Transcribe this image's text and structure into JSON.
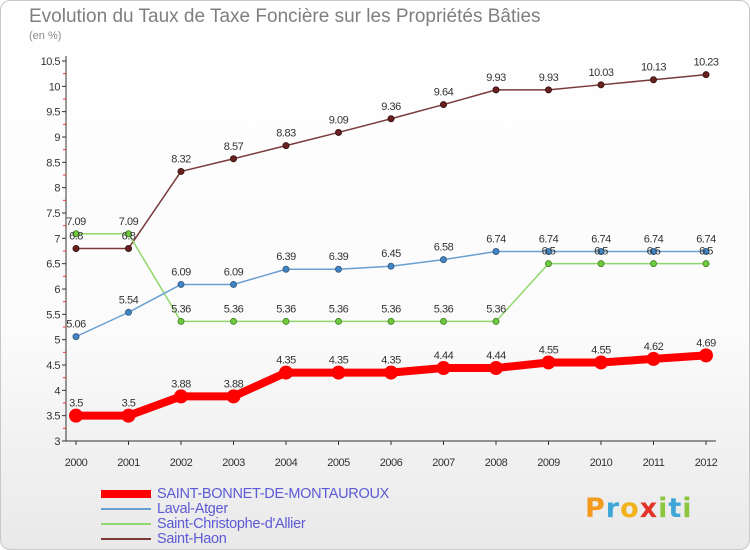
{
  "title": "Evolution du Taux de Taxe Foncière sur les Propriétés Bâties",
  "subtitle": "(en %)",
  "brand": {
    "letters": [
      "P",
      "r",
      "o",
      "x",
      "i",
      "t",
      "i"
    ],
    "colors": [
      "#f29a1e",
      "#3fa6d8",
      "#f2b21e",
      "#e6332a",
      "#8cc63f",
      "#3fa6d8",
      "#8cc63f"
    ]
  },
  "chart_data": {
    "type": "line",
    "x": [
      "2000",
      "2001",
      "2002",
      "2003",
      "2004",
      "2005",
      "2006",
      "2007",
      "2008",
      "2009",
      "2010",
      "2011",
      "2012"
    ],
    "ylim": [
      3,
      10.5
    ],
    "yticks": [
      "3",
      "3.5",
      "4",
      "4.5",
      "5",
      "5.5",
      "6",
      "6.5",
      "7",
      "7.5",
      "8",
      "8.5",
      "9",
      "9.5",
      "10",
      "10.5"
    ],
    "grid": false,
    "legend": "bottom-left",
    "series": [
      {
        "name": "SAINT-BONNET-DE-MONTAUROUX",
        "color": "#ff0000",
        "values": [
          3.5,
          3.5,
          3.88,
          3.88,
          4.35,
          4.35,
          4.35,
          4.44,
          4.44,
          4.55,
          4.55,
          4.62,
          4.69
        ]
      },
      {
        "name": "Laval-Atger",
        "color": "#6a9fd2",
        "values": [
          5.06,
          5.54,
          6.09,
          6.09,
          6.39,
          6.39,
          6.45,
          6.58,
          6.74,
          6.74,
          6.74,
          6.74,
          6.74
        ]
      },
      {
        "name": "Saint-Christophe-d'Allier",
        "color": "#90d86b",
        "values": [
          7.09,
          7.09,
          5.36,
          5.36,
          5.36,
          5.36,
          5.36,
          5.36,
          5.36,
          6.5,
          6.5,
          6.5,
          6.5
        ]
      },
      {
        "name": "Saint-Haon",
        "color": "#7a3a3a",
        "values": [
          6.8,
          6.8,
          8.32,
          8.57,
          8.83,
          9.09,
          9.36,
          9.64,
          9.93,
          9.93,
          10.03,
          10.13,
          10.23
        ]
      }
    ],
    "data_labels": [
      [
        "3.5",
        "3.5",
        "3.88",
        "3.88",
        "4.35",
        "4.35",
        "4.35",
        "4.44",
        "4.44",
        "4.55",
        "4.55",
        "4.62",
        "4.69"
      ],
      [
        "5.06",
        "5.54",
        "6.09",
        "6.09",
        "6.39",
        "6.39",
        "6.45",
        "6.58",
        "6.74",
        "6.74",
        "6.74",
        "6.74",
        "6.74"
      ],
      [
        "7.09",
        "7.09",
        "5.36",
        "5.36",
        "5.36",
        "5.36",
        "5.36",
        "5.36",
        "5.36",
        "6.5",
        "6.5",
        "6.5",
        "6.5"
      ],
      [
        "6.8",
        "6.8",
        "8.32",
        "8.57",
        "8.83",
        "9.09",
        "9.36",
        "9.64",
        "9.93",
        "9.93",
        "10.03",
        "10.13",
        "10.23"
      ]
    ]
  }
}
